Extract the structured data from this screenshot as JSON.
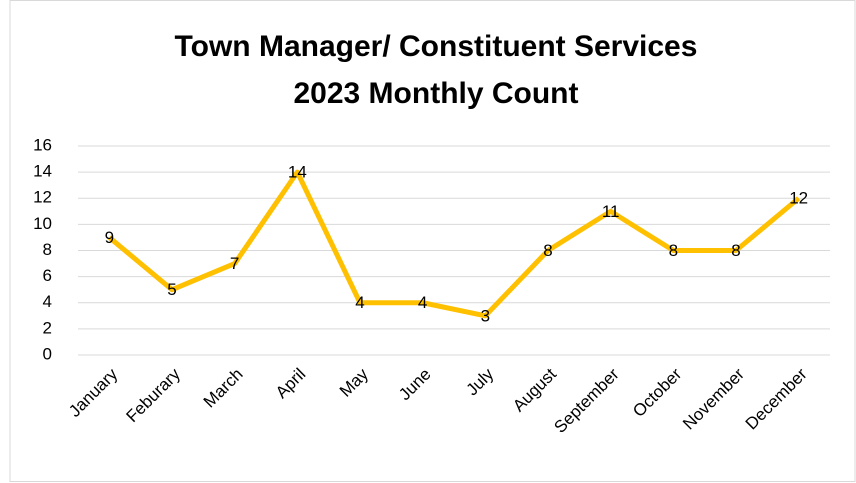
{
  "chart_data": {
    "type": "line",
    "title": [
      "Town Manager/ Constituent Services",
      "2023 Monthly Count"
    ],
    "categories": [
      "January",
      "Feburary",
      "March",
      "April",
      "May",
      "June",
      "July",
      "August",
      "September",
      "October",
      "November",
      "December"
    ],
    "values": [
      9,
      5,
      7,
      14,
      4,
      4,
      3,
      8,
      11,
      8,
      8,
      12
    ],
    "color": "#ffc000",
    "ylim": [
      0,
      16
    ],
    "yticks": [
      0,
      2,
      4,
      6,
      8,
      10,
      12,
      14,
      16
    ],
    "grid": true
  }
}
